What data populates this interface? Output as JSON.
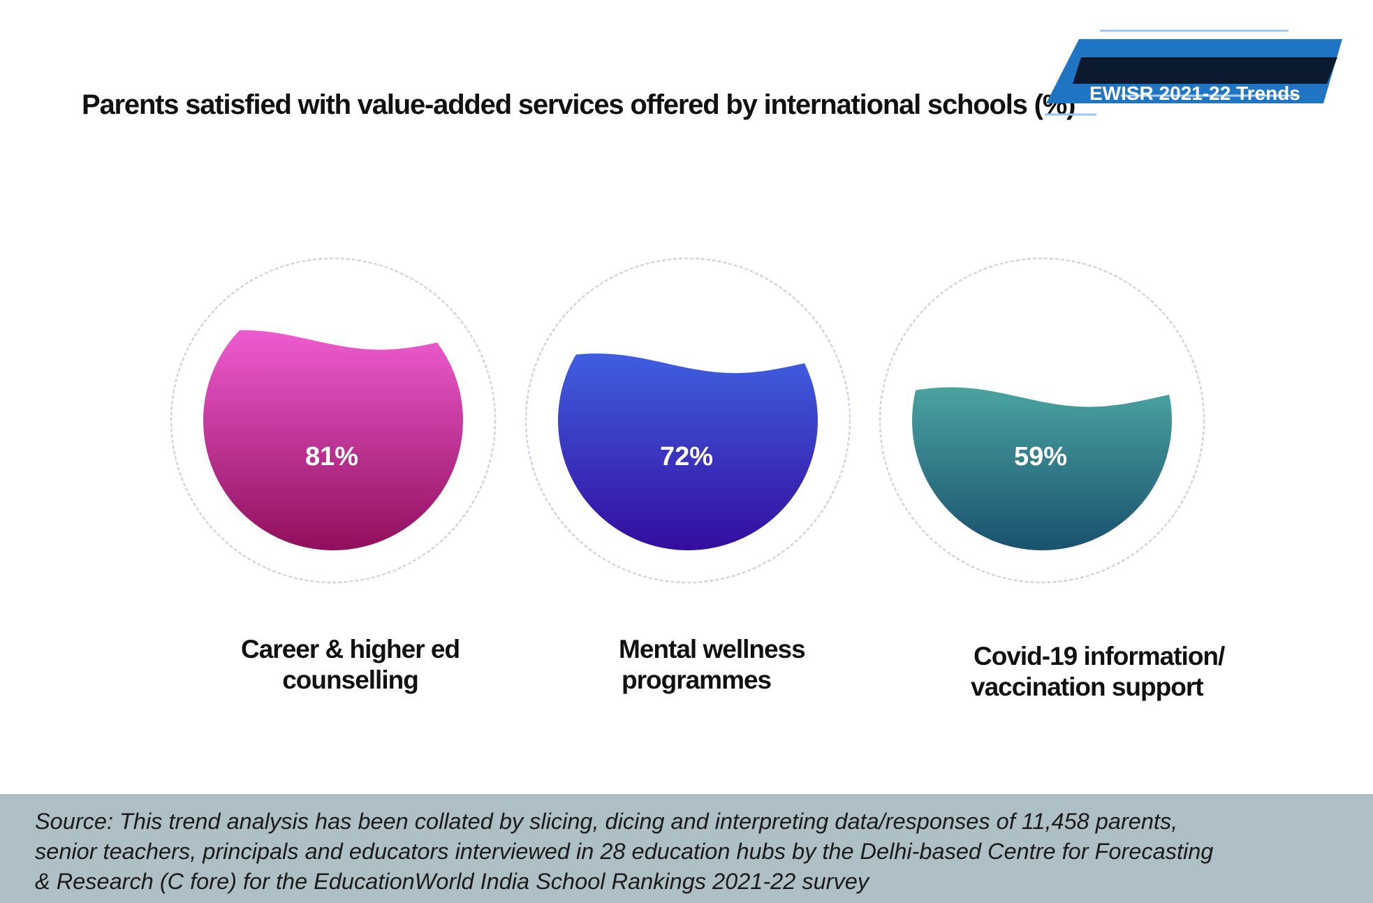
{
  "header": {
    "title": "Parents satisfied with value-added services offered by international schools (%)",
    "badge": "EWISR 2021-22 Trends"
  },
  "chart_data": {
    "type": "bar",
    "title": "Parents satisfied with value-added services offered by international schools (%)",
    "categories": [
      "Career & higher ed counselling",
      "Mental wellness programmes",
      "Covid-19 information/ vaccination support"
    ],
    "category_lines": [
      [
        "Career & higher ed",
        "counselling"
      ],
      [
        "Mental wellness",
        "programmes"
      ],
      [
        "Covid-19 information/",
        "vaccination support"
      ]
    ],
    "values": [
      81,
      72,
      59
    ],
    "value_labels": [
      "81%",
      "72%",
      "59%"
    ],
    "ylim": [
      0,
      100
    ],
    "colors": [
      [
        "#ee5cd0",
        "#8a0a55"
      ],
      [
        "#3f5fe0",
        "#34079a"
      ],
      [
        "#4aa3a0",
        "#154a6a"
      ]
    ]
  },
  "footer": {
    "source_lines": [
      "Source: This trend analysis has been collated by slicing, dicing and interpreting data/responses of 11,458 parents,",
      "senior teachers, principals and educators interviewed in 28 education hubs by the Delhi-based Centre for Forecasting",
      "& Research (C fore) for the EducationWorld India School Rankings 2021-22 survey"
    ]
  }
}
